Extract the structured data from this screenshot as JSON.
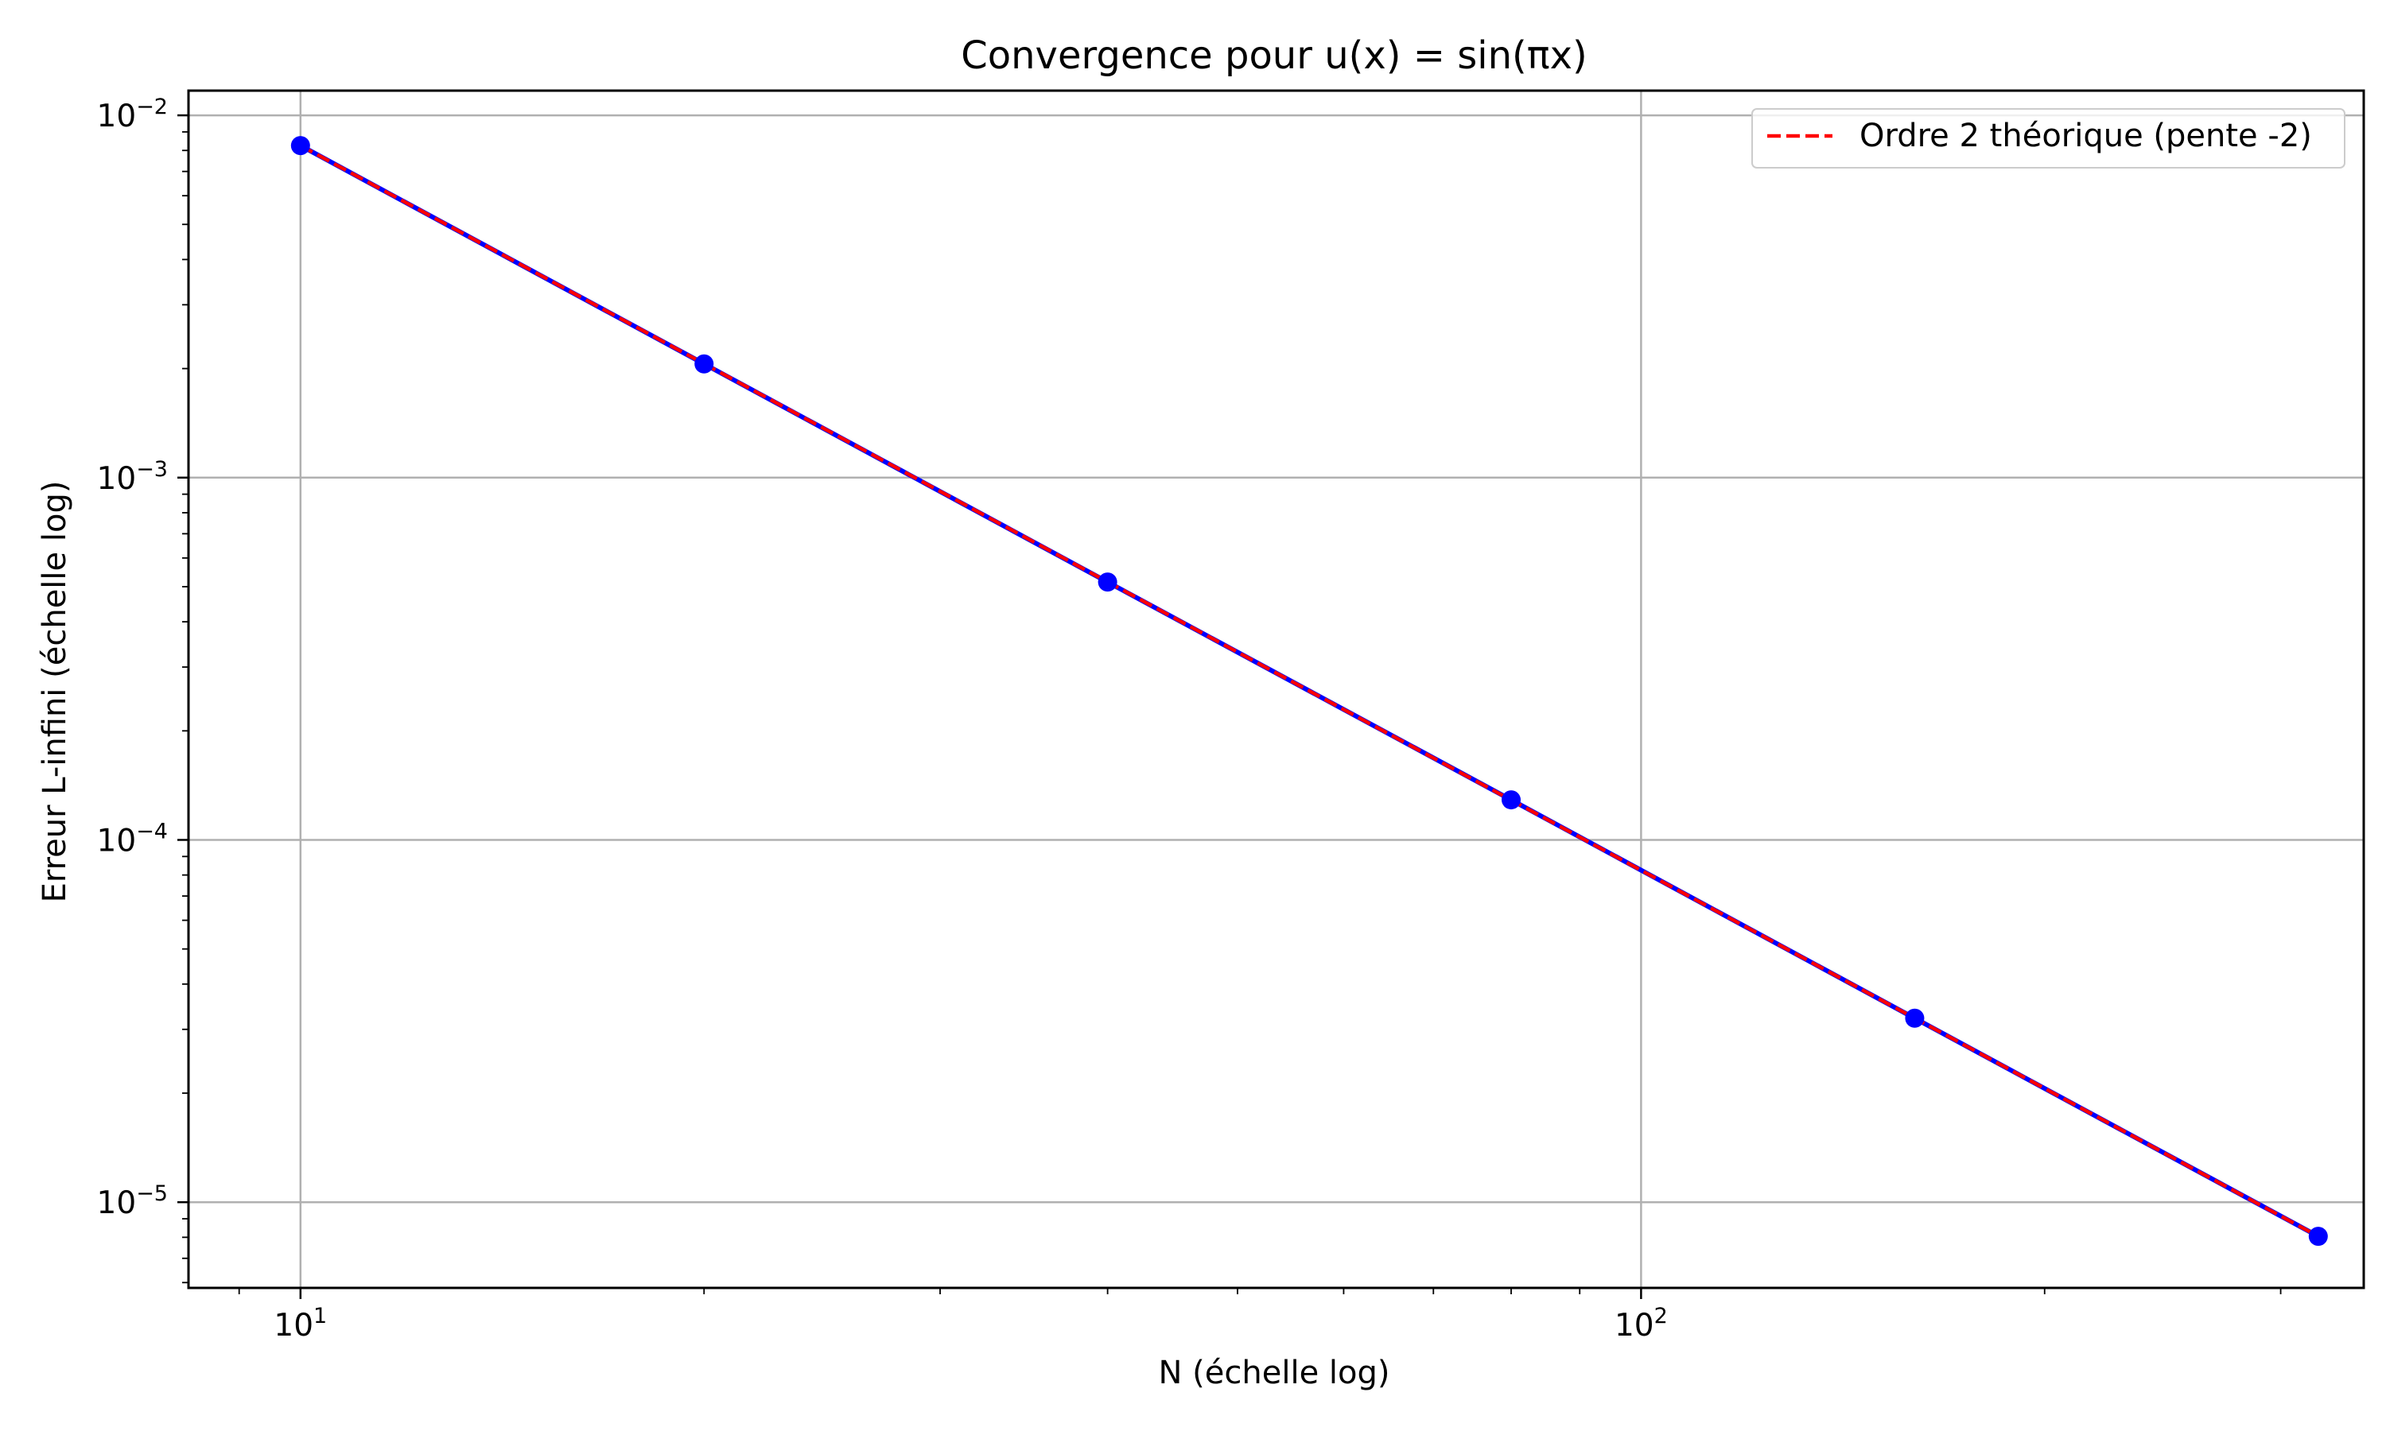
{
  "chart_data": {
    "type": "line",
    "title": "Convergence pour u(x) = sin(πx)",
    "xlabel": "N (échelle log)",
    "ylabel": "Erreur L-infini (échelle log)",
    "xscale": "log",
    "yscale": "log",
    "xlim": [
      8.25,
      346
    ],
    "ylim": [
      5.8e-06,
      0.0117
    ],
    "x_ticks": [
      {
        "value": 10,
        "base": "10",
        "exp": "1"
      },
      {
        "value": 100,
        "base": "10",
        "exp": "2"
      }
    ],
    "y_ticks": [
      {
        "value": 0.01,
        "base": "10",
        "exp": "−2"
      },
      {
        "value": 0.001,
        "base": "10",
        "exp": "−3"
      },
      {
        "value": 0.0001,
        "base": "10",
        "exp": "−4"
      },
      {
        "value": 1e-05,
        "base": "10",
        "exp": "−5"
      }
    ],
    "grid": true,
    "legend_position": "top-right",
    "series": [
      {
        "x": [
          10,
          20,
          40,
          80,
          160,
          320
        ],
        "y": [
          0.00825,
          0.00206,
          0.000515,
          0.000129,
          3.22e-05,
          8.05e-06
        ],
        "color": "#0000ff",
        "marker": "circle",
        "line_style": "solid"
      },
      {
        "name": "Ordre 2 théorique (pente -2)",
        "x": [
          10,
          320
        ],
        "y": [
          0.00825,
          8.05e-06
        ],
        "color": "#ff0000",
        "line_style": "dashed"
      }
    ]
  }
}
